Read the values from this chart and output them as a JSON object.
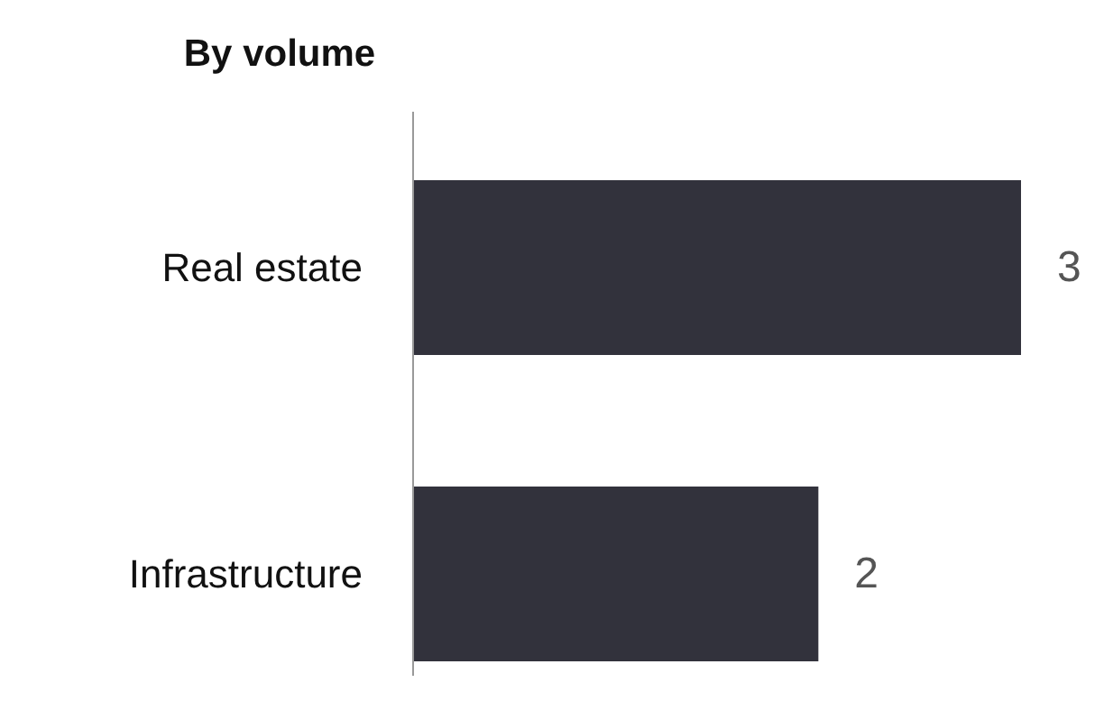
{
  "chart_data": {
    "type": "bar",
    "orientation": "horizontal",
    "title": "By volume",
    "categories": [
      "Real estate",
      "Infrastructure"
    ],
    "values": [
      3,
      2
    ],
    "color": "#32323c",
    "data_labels": true
  }
}
